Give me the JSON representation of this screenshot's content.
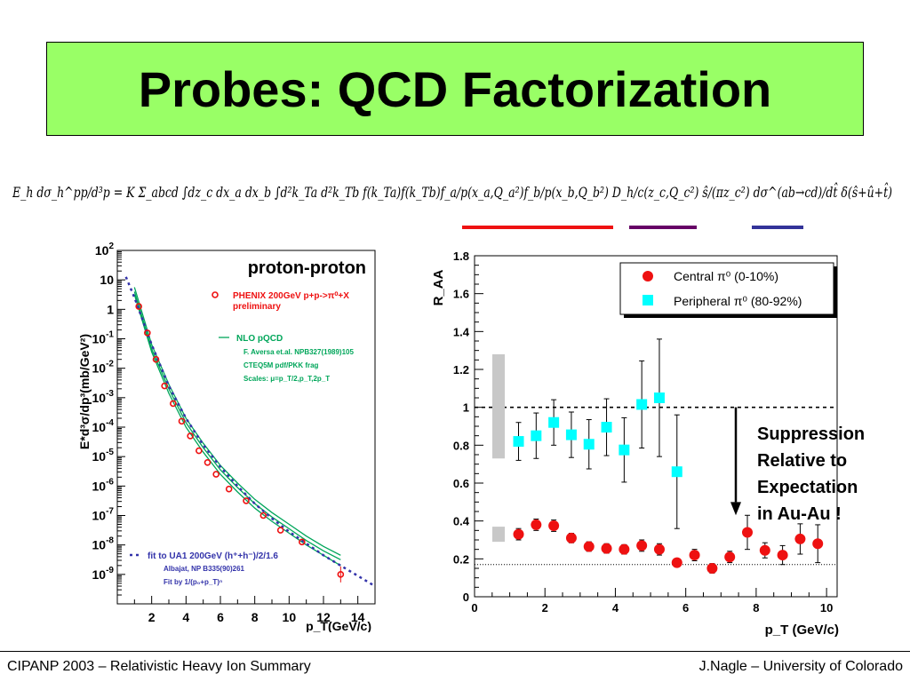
{
  "title": "Probes: QCD Factorization",
  "formula_text": "E_h dσ_h^pp/d³p = K Σ_abcd ∫dz_c dx_a dx_b ∫d²k_Ta d²k_Tb f(k_Ta)f(k_Tb)f_a/p(x_a,Q_a²)f_b/p(x_b,Q_b²) D_h/c(z_c,Q_c²) ŝ/(πz_c²) dσ^(ab→cd)/dt̂ δ(ŝ+û+t̂)",
  "formula_bars": [
    "#ee1111",
    "#660066",
    "#333399"
  ],
  "colors": {
    "title_bg": "#99ff66",
    "central": "#ee1111",
    "peripheral": "#00ffff",
    "nlo": "#00a65a",
    "fit": "#3333aa"
  },
  "annotation": [
    "Suppression",
    "Relative to",
    "Expectation",
    "in Au-Au !"
  ],
  "footer": {
    "left": "CIPANP 2003 – Relativistic Heavy Ion Summary",
    "right": "J.Nagle – University of Colorado"
  },
  "chart_data": [
    {
      "type": "scatter",
      "title": "proton-proton",
      "xlabel": "p_T(GeV/c)",
      "ylabel": "E*d³σ/dp³(mb/GeV²)",
      "xlim": [
        0,
        15
      ],
      "ylim_log10": [
        -10,
        2
      ],
      "yscale": "log",
      "x_ticks": [
        "2",
        "4",
        "6",
        "8",
        "10",
        "12",
        "14"
      ],
      "y_ticks": [
        "10^2",
        "10",
        "1",
        "10^-1",
        "10^-2",
        "10^-3",
        "10^-4",
        "10^-5",
        "10^-6",
        "10^-7",
        "10^-8",
        "10^-9"
      ],
      "legend": {
        "data_label": "PHENIX 200GeV p+p->π⁰+X",
        "data_sub": "preliminary",
        "nlo_label": "NLO pQCD",
        "nlo_notes": [
          "F. Aversa et.al. NPB327(1989)105",
          "CTEQ5M pdf/PKK frag",
          "Scales: μ=p_T/2,p_T,2p_T"
        ],
        "fit_label": "fit to UA1 200GeV (h⁺+h⁻)/2/1.6",
        "fit_notes": [
          "Albajat, NP B335(90)261",
          "Fit by 1/(p₀+p_T)ⁿ"
        ]
      },
      "series": [
        {
          "name": "PHENIX 200GeV p+p->π⁰+X",
          "x": [
            1.25,
            1.75,
            2.25,
            2.75,
            3.25,
            3.75,
            4.25,
            4.75,
            5.25,
            5.75,
            6.5,
            7.5,
            8.5,
            9.5,
            10.75,
            13.0
          ],
          "y_log10": [
            0.1,
            -0.8,
            -1.7,
            -2.6,
            -3.2,
            -3.8,
            -4.3,
            -4.8,
            -5.2,
            -5.6,
            -6.1,
            -6.5,
            -7.0,
            -7.5,
            -7.9,
            -9.0
          ]
        },
        {
          "name": "NLO pQCD",
          "scales": [
            "p_T/2",
            "p_T",
            "2p_T"
          ],
          "x": [
            1,
            2,
            3,
            4,
            5,
            6,
            7,
            8,
            9,
            10,
            11,
            12,
            13
          ],
          "y_log10_low": [
            0.5,
            -1.45,
            -2.85,
            -4.0,
            -4.85,
            -5.6,
            -6.2,
            -6.75,
            -7.2,
            -7.6,
            -8.0,
            -8.35,
            -8.7
          ],
          "y_log10_mid": [
            0.6,
            -1.35,
            -2.7,
            -3.85,
            -4.7,
            -5.45,
            -6.05,
            -6.6,
            -7.05,
            -7.45,
            -7.85,
            -8.2,
            -8.5
          ],
          "y_log10_high": [
            0.75,
            -1.2,
            -2.55,
            -3.7,
            -4.55,
            -5.3,
            -5.9,
            -6.45,
            -6.9,
            -7.3,
            -7.7,
            -8.05,
            -8.35
          ]
        },
        {
          "name": "fit to UA1 200GeV",
          "x": [
            0.5,
            1,
            1.5,
            2,
            3,
            4,
            5,
            6,
            7,
            8,
            9,
            10,
            11,
            12,
            13,
            14,
            15
          ],
          "y_log10": [
            1.1,
            0.4,
            -0.4,
            -1.2,
            -2.6,
            -3.7,
            -4.6,
            -5.35,
            -6.0,
            -6.6,
            -7.1,
            -7.55,
            -7.95,
            -8.35,
            -8.7,
            -9.05,
            -9.4
          ]
        }
      ]
    },
    {
      "type": "scatter",
      "xlabel": "p_T (GeV/c)",
      "ylabel": "R_AA",
      "xlim": [
        0,
        10.3
      ],
      "ylim": [
        0,
        1.8
      ],
      "x_ticks": [
        0,
        2,
        4,
        6,
        8,
        10
      ],
      "y_ticks": [
        "0",
        "0.2",
        "0.4",
        "0.6",
        "0.8",
        "1",
        "1.2",
        "1.4",
        "1.6",
        "1.8"
      ],
      "reference_lines": [
        1.0,
        0.17
      ],
      "sys_bands": [
        {
          "center": 1.0,
          "low": 0.73,
          "high": 1.28
        },
        {
          "center": 0.33,
          "low": 0.29,
          "high": 0.37
        }
      ],
      "legend": {
        "central": "Central π⁰ (0-10%)",
        "peripheral": "Peripheral π⁰ (80-92%)"
      },
      "series": [
        {
          "name": "Central π⁰ (0-10%)",
          "x": [
            1.25,
            1.75,
            2.25,
            2.75,
            3.25,
            3.75,
            4.25,
            4.75,
            5.25,
            5.75,
            6.25,
            6.75,
            7.25,
            7.75,
            8.25,
            8.75,
            9.25,
            9.75
          ],
          "y": [
            0.33,
            0.38,
            0.375,
            0.31,
            0.265,
            0.255,
            0.25,
            0.27,
            0.25,
            0.18,
            0.22,
            0.15,
            0.21,
            0.34,
            0.245,
            0.22,
            0.305,
            0.28
          ],
          "err": [
            0.03,
            0.03,
            0.03,
            0.025,
            0.025,
            0.025,
            0.025,
            0.03,
            0.03,
            0.02,
            0.03,
            0.025,
            0.03,
            0.09,
            0.04,
            0.05,
            0.08,
            0.1
          ]
        },
        {
          "name": "Peripheral π⁰ (80-92%)",
          "x": [
            1.25,
            1.75,
            2.25,
            2.75,
            3.25,
            3.75,
            4.25,
            4.75,
            5.25,
            5.75
          ],
          "y": [
            0.82,
            0.85,
            0.92,
            0.855,
            0.805,
            0.895,
            0.775,
            1.015,
            1.05,
            0.66
          ],
          "err": [
            0.1,
            0.12,
            0.12,
            0.12,
            0.13,
            0.15,
            0.17,
            0.23,
            0.31,
            0.3
          ]
        }
      ]
    }
  ]
}
